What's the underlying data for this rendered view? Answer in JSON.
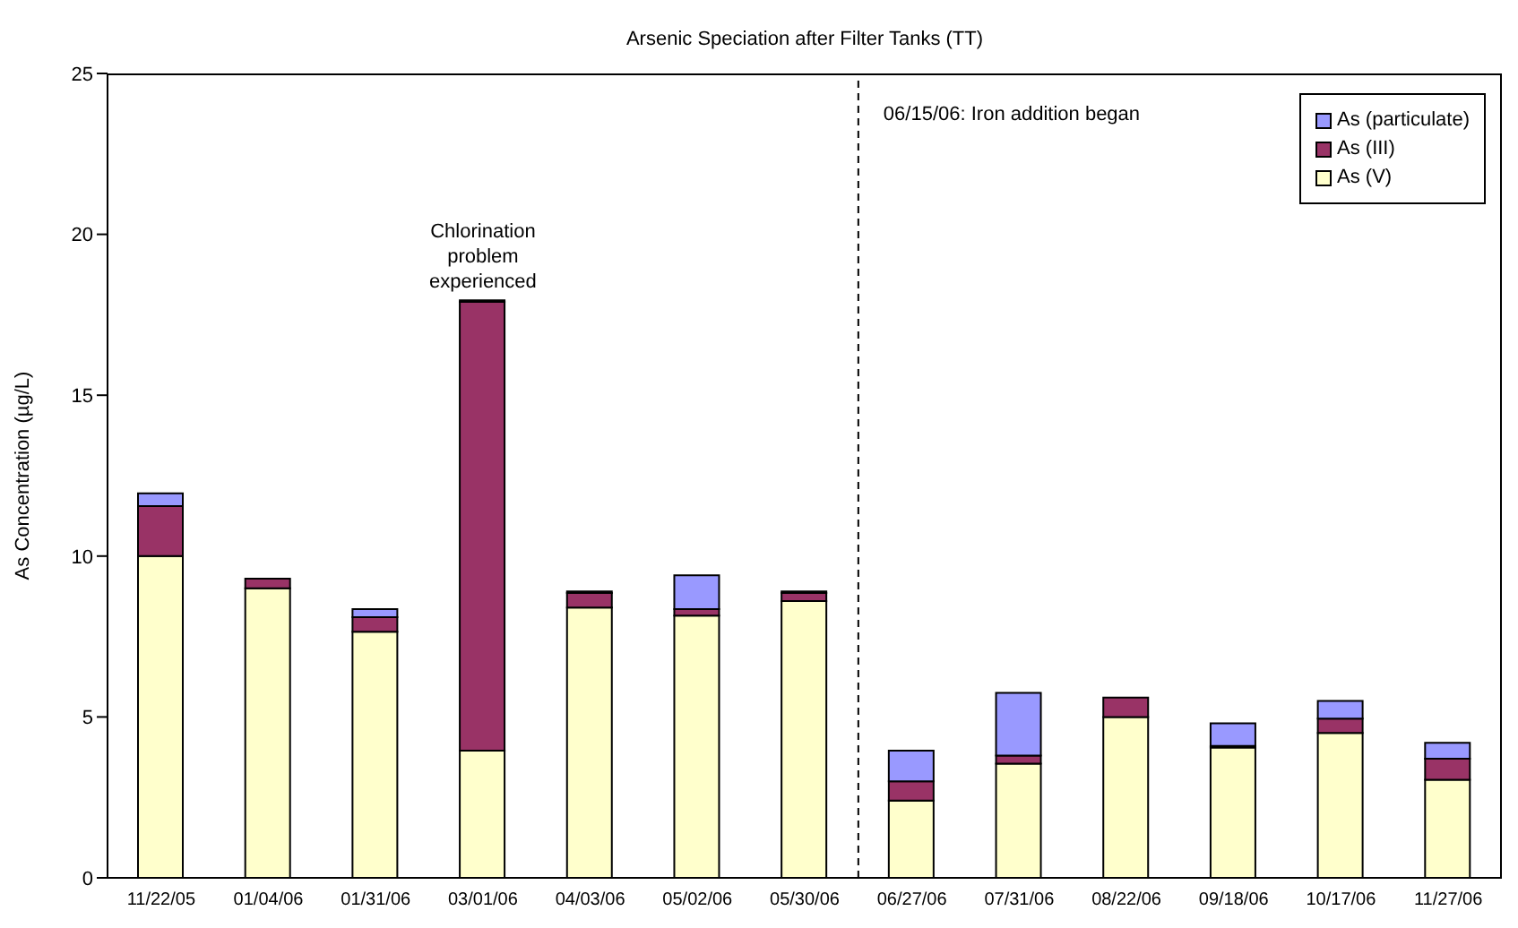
{
  "chart_data": {
    "type": "bar",
    "title": "Arsenic Speciation after Filter Tanks (TT)",
    "ylabel": "As Concentration (µg/L)",
    "categories": [
      "11/22/05",
      "01/04/06",
      "01/31/06",
      "03/01/06",
      "04/03/06",
      "05/02/06",
      "05/30/06",
      "06/27/06",
      "07/31/06",
      "08/22/06",
      "09/18/06",
      "10/17/06",
      "11/27/06"
    ],
    "stacked": true,
    "series": [
      {
        "name": "As (V)",
        "color": "#ffffcc",
        "values": [
          10.0,
          9.0,
          7.65,
          3.95,
          8.4,
          8.15,
          8.6,
          2.4,
          3.55,
          5.0,
          4.05,
          4.5,
          3.05
        ]
      },
      {
        "name": "As (III)",
        "color": "#993366",
        "values": [
          1.55,
          0.3,
          0.45,
          13.95,
          0.45,
          0.2,
          0.25,
          0.6,
          0.25,
          0.6,
          0.05,
          0.45,
          0.65
        ]
      },
      {
        "name": "As (particulate)",
        "color": "#9999ff",
        "values": [
          0.4,
          null,
          0.25,
          0.05,
          0.05,
          1.05,
          0.05,
          0.95,
          1.95,
          null,
          0.7,
          0.55,
          0.5
        ]
      }
    ],
    "ylim": [
      0,
      25
    ],
    "yticks": [
      0,
      5,
      10,
      15,
      20,
      25
    ],
    "legend": "top right",
    "annotations": [
      "06/15/06: Iron addition began",
      {
        "text": "Chlorination problem experienced",
        "x": "03/01/06",
        "y": 17.9
      }
    ]
  }
}
